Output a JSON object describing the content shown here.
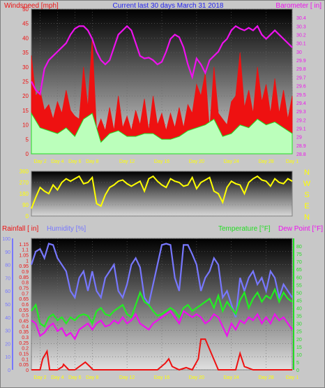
{
  "chart_data": [
    {
      "type": "line",
      "title": "Current last 30 days March 31 2018",
      "ylabel_left": "Windspeed [mph]",
      "ylabel_right": "Barometer [ in]",
      "ylim_left": [
        0,
        50
      ],
      "ylim_right": [
        28.8,
        30.5
      ],
      "y_ticks_left": [
        "0",
        "5",
        "10",
        "15",
        "20",
        "25",
        "30",
        "35",
        "40",
        "45",
        "50"
      ],
      "y_ticks_right": [
        "28.8",
        "28.9",
        "29",
        "29.1",
        "29.2",
        "29.3",
        "29.4",
        "29.5",
        "29.6",
        "29.7",
        "29.8",
        "29.9",
        "30",
        "30.1",
        "30.2",
        "30.3",
        "30.4"
      ],
      "x_ticks": [
        "Day 2",
        "Day 4",
        "Day 6",
        "Day 8",
        "Day 12",
        "Day 16",
        "Day 20",
        "Day 24",
        "Day 28",
        "Day 1"
      ],
      "x_tick_days": [
        1,
        3,
        5,
        7,
        11,
        15,
        19,
        23,
        27,
        30
      ],
      "series": [
        {
          "name": "Windspeed gust",
          "color": "#ee1111",
          "x": [
            0,
            0.5,
            1,
            1.5,
            2,
            2.5,
            3,
            3.5,
            4,
            4.5,
            5,
            5.5,
            6,
            6.5,
            7,
            7.5,
            8,
            8.5,
            9,
            9.5,
            10,
            10.5,
            11,
            11.5,
            12,
            12.5,
            13,
            13.5,
            14,
            14.5,
            15,
            15.5,
            16,
            16.5,
            17,
            17.5,
            18,
            18.5,
            19,
            19.5,
            20,
            20.5,
            21,
            21.5,
            22,
            22.5,
            23,
            23.5,
            24,
            24.5,
            25,
            25.5,
            26,
            26.5,
            27,
            27.5,
            28,
            28.5,
            29,
            29.5,
            30
          ],
          "values": [
            34,
            20,
            22,
            15,
            17,
            12,
            18,
            14,
            22,
            15,
            13,
            12,
            30,
            16,
            40,
            8,
            12,
            8,
            16,
            8,
            20,
            9,
            13,
            8,
            15,
            10,
            19,
            8,
            20,
            10,
            14,
            8,
            14,
            9,
            16,
            9,
            17,
            14,
            24,
            20,
            28,
            8,
            30,
            14,
            12,
            10,
            18,
            20,
            35,
            16,
            22,
            14,
            30,
            18,
            24,
            14,
            26,
            14,
            22,
            12,
            20
          ]
        },
        {
          "name": "Windspeed average",
          "color": "#22dd22",
          "x": [
            0,
            1,
            2,
            3,
            4,
            5,
            6,
            7,
            8,
            9,
            10,
            11,
            12,
            13,
            14,
            15,
            16,
            17,
            18,
            19,
            20,
            21,
            22,
            23,
            24,
            25,
            26,
            27,
            28,
            29,
            30
          ],
          "values": [
            14,
            9,
            8,
            7,
            9,
            6,
            12,
            14,
            4,
            7,
            8,
            6,
            6,
            7,
            7,
            5,
            5,
            6,
            8,
            9,
            10,
            12,
            6,
            7,
            10,
            9,
            12,
            10,
            11,
            9,
            7
          ]
        },
        {
          "name": "Barometer",
          "color": "#ee11ee",
          "x": [
            0,
            0.5,
            1,
            1.5,
            2,
            2.5,
            3,
            3.5,
            4,
            4.5,
            5,
            5.5,
            6,
            6.5,
            7,
            7.5,
            8,
            8.5,
            9,
            9.5,
            10,
            10.5,
            11,
            11.5,
            12,
            12.5,
            13,
            13.5,
            14,
            14.5,
            15,
            15.5,
            16,
            16.5,
            17,
            17.5,
            18,
            18.5,
            19,
            19.5,
            20,
            20.5,
            21,
            21.5,
            22,
            22.5,
            23,
            23.5,
            24,
            24.5,
            25,
            25.5,
            26,
            26.5,
            27,
            27.5,
            28,
            28.5,
            29,
            29.5,
            30
          ],
          "values": [
            29.65,
            29.55,
            29.5,
            29.8,
            29.9,
            29.95,
            30.0,
            30.05,
            30.1,
            30.2,
            30.27,
            30.3,
            30.3,
            30.25,
            30.15,
            30.0,
            29.9,
            29.85,
            29.9,
            30.05,
            30.2,
            30.25,
            30.3,
            30.25,
            30.1,
            29.95,
            29.92,
            29.93,
            29.9,
            29.85,
            29.88,
            30.0,
            30.15,
            30.2,
            30.17,
            30.05,
            29.85,
            29.7,
            29.92,
            29.85,
            29.75,
            29.9,
            29.95,
            30.0,
            30.1,
            30.15,
            30.25,
            30.3,
            30.27,
            30.25,
            30.28,
            30.25,
            30.3,
            30.2,
            30.15,
            30.2,
            30.25,
            30.2,
            30.15,
            30.1,
            30.05
          ]
        }
      ]
    },
    {
      "type": "line",
      "ylabel_right": [
        "N",
        "W",
        "S",
        "E",
        "N"
      ],
      "ylim": [
        0,
        360
      ],
      "y_ticks": [
        "0",
        "90",
        "180",
        "270",
        "360"
      ],
      "series": [
        {
          "name": "Wind direction",
          "color": "#ffff00",
          "x": [
            0,
            0.5,
            1,
            1.5,
            2,
            2.5,
            3,
            3.5,
            4,
            4.5,
            5,
            5.5,
            6,
            6.5,
            7,
            7.5,
            8,
            8.5,
            9,
            9.5,
            10,
            10.5,
            11,
            11.5,
            12,
            12.5,
            13,
            13.5,
            14,
            14.5,
            15,
            15.5,
            16,
            16.5,
            17,
            17.5,
            18,
            18.5,
            19,
            19.5,
            20,
            20.5,
            21,
            21.5,
            22,
            22.5,
            23,
            23.5,
            24,
            24.5,
            25,
            25.5,
            26,
            26.5,
            27,
            27.5,
            28,
            28.5,
            29,
            29.5,
            30
          ],
          "values": [
            60,
            150,
            230,
            200,
            180,
            250,
            210,
            270,
            300,
            280,
            300,
            320,
            260,
            270,
            310,
            100,
            80,
            170,
            230,
            250,
            280,
            290,
            260,
            240,
            260,
            280,
            200,
            300,
            320,
            280,
            250,
            230,
            300,
            280,
            270,
            240,
            250,
            310,
            220,
            270,
            290,
            310,
            200,
            180,
            110,
            230,
            280,
            260,
            250,
            180,
            270,
            300,
            320,
            290,
            280,
            240,
            300,
            270,
            260,
            300,
            280
          ]
        }
      ]
    },
    {
      "type": "line",
      "ylabel_left": [
        "Rainfall [ in]",
        "Humidity [%]"
      ],
      "ylabel_right": [
        "Temperature [°F]",
        "Dew Point [°F]"
      ],
      "ylim_rain": [
        0,
        1.2
      ],
      "ylim_humidity": [
        0,
        100
      ],
      "ylim_temperature": [
        0,
        85
      ],
      "rain_ticks": [
        "0",
        "0.05",
        "0.1",
        "0.15",
        "0.2",
        "0.25",
        "0.3",
        "0.35",
        "0.4",
        "0.45",
        "0.5",
        "0.55",
        "0.6",
        "0.65",
        "0.7",
        "0.75",
        "0.8",
        "0.85",
        "0.9",
        "0.95",
        "1",
        "1.05",
        "1.1",
        "1.15"
      ],
      "humidity_ticks": [
        "0",
        "10",
        "20",
        "30",
        "40",
        "50",
        "60",
        "70",
        "80",
        "90",
        "100"
      ],
      "temperature_ticks": [
        "0",
        "5",
        "10",
        "15",
        "20",
        "25",
        "30",
        "35",
        "40",
        "45",
        "50",
        "55",
        "60",
        "65",
        "70",
        "75",
        "80"
      ],
      "x_ticks": [
        "Day 2",
        "Day 4",
        "Day 6",
        "Day 8",
        "Day 12",
        "Day 16",
        "Day 20",
        "Day 24",
        "Day 28",
        "Day 1"
      ],
      "series": [
        {
          "name": "Humidity",
          "color": "#7777ff",
          "x": [
            0,
            0.5,
            1,
            1.5,
            2,
            2.5,
            3,
            3.5,
            4,
            4.5,
            5,
            5.5,
            6,
            6.5,
            7,
            7.5,
            8,
            8.5,
            9,
            9.5,
            10,
            10.5,
            11,
            11.5,
            12,
            12.5,
            13,
            13.5,
            14,
            14.5,
            15,
            15.5,
            16,
            16.5,
            17,
            17.5,
            18,
            18.5,
            19,
            19.5,
            20,
            20.5,
            21,
            21.5,
            22,
            22.5,
            23,
            23.5,
            24,
            24.5,
            25,
            25.5,
            26,
            26.5,
            27,
            27.5,
            28,
            28.5,
            29,
            29.5,
            30
          ],
          "values": [
            80,
            90,
            92,
            85,
            96,
            95,
            85,
            80,
            75,
            60,
            55,
            70,
            75,
            60,
            75,
            60,
            55,
            70,
            75,
            80,
            60,
            55,
            65,
            80,
            85,
            78,
            55,
            50,
            65,
            80,
            95,
            96,
            95,
            70,
            60,
            95,
            95,
            88,
            80,
            60,
            70,
            75,
            85,
            80,
            55,
            60,
            50,
            40,
            70,
            60,
            70,
            75,
            65,
            70,
            60,
            75,
            70,
            55,
            65,
            60,
            55
          ]
        },
        {
          "name": "Temperature",
          "color": "#22ee22",
          "x": [
            0,
            0.5,
            1,
            1.5,
            2,
            2.5,
            3,
            3.5,
            4,
            4.5,
            5,
            5.5,
            6,
            6.5,
            7,
            7.5,
            8,
            8.5,
            9,
            9.5,
            10,
            10.5,
            11,
            11.5,
            12,
            12.5,
            13,
            13.5,
            14,
            14.5,
            15,
            15.5,
            16,
            16.5,
            17,
            17.5,
            18,
            18.5,
            19,
            19.5,
            20,
            20.5,
            21,
            21.5,
            22,
            22.5,
            23,
            23.5,
            24,
            24.5,
            25,
            25.5,
            26,
            26.5,
            27,
            27.5,
            28,
            28.5,
            29,
            29.5,
            30
          ],
          "values": [
            38,
            42,
            30,
            28,
            34,
            36,
            32,
            34,
            30,
            34,
            32,
            35,
            36,
            35,
            30,
            38,
            40,
            36,
            35,
            38,
            40,
            42,
            36,
            34,
            42,
            50,
            44,
            42,
            38,
            35,
            36,
            38,
            40,
            38,
            34,
            40,
            42,
            38,
            40,
            42,
            44,
            46,
            40,
            48,
            38,
            44,
            40,
            36,
            45,
            50,
            40,
            46,
            50,
            44,
            48,
            46,
            52,
            44,
            50,
            46,
            44
          ]
        },
        {
          "name": "Dew Point",
          "color": "#ee11ee",
          "x": [
            0,
            0.5,
            1,
            1.5,
            2,
            2.5,
            3,
            3.5,
            4,
            4.5,
            5,
            5.5,
            6,
            6.5,
            7,
            7.5,
            8,
            8.5,
            9,
            9.5,
            10,
            10.5,
            11,
            11.5,
            12,
            12.5,
            13,
            13.5,
            14,
            14.5,
            15,
            15.5,
            16,
            16.5,
            17,
            17.5,
            18,
            18.5,
            19,
            19.5,
            20,
            20.5,
            21,
            21.5,
            22,
            22.5,
            23,
            23.5,
            24,
            24.5,
            25,
            25.5,
            26,
            26.5,
            27,
            27.5,
            28,
            28.5,
            29,
            29.5,
            30
          ],
          "values": [
            32,
            30,
            22,
            24,
            28,
            30,
            25,
            27,
            22,
            24,
            20,
            26,
            28,
            30,
            26,
            30,
            32,
            28,
            29,
            32,
            30,
            34,
            30,
            32,
            36,
            30,
            28,
            26,
            30,
            32,
            34,
            36,
            38,
            34,
            30,
            38,
            36,
            34,
            36,
            34,
            30,
            32,
            36,
            34,
            28,
            22,
            30,
            26,
            32,
            30,
            34,
            32,
            36,
            30,
            34,
            30,
            36,
            32,
            34,
            30,
            26
          ]
        },
        {
          "name": "Rainfall",
          "color": "#ee1111",
          "x": [
            0,
            1,
            1.3,
            1.8,
            2.1,
            3,
            3.6,
            3.7,
            4.3,
            5,
            6.2,
            6.6,
            7.1,
            7.5,
            8.5,
            10.5,
            12,
            13.5,
            14.5,
            15.4,
            15.8,
            16.2,
            17,
            17.8,
            18.5,
            19.2,
            19.5,
            20,
            21.5,
            22,
            23.5,
            24,
            24.5,
            25.5,
            26,
            30
          ],
          "values": [
            0,
            0,
            0.1,
            0.17,
            0,
            0,
            0.03,
            0.05,
            0,
            0,
            0.07,
            0.04,
            0,
            0,
            0,
            0,
            0,
            0,
            0,
            0.06,
            0.1,
            0.03,
            0,
            0.02,
            0,
            0.1,
            0.28,
            0.28,
            0,
            0,
            0,
            0.15,
            0.03,
            0,
            0,
            0
          ]
        }
      ]
    }
  ]
}
